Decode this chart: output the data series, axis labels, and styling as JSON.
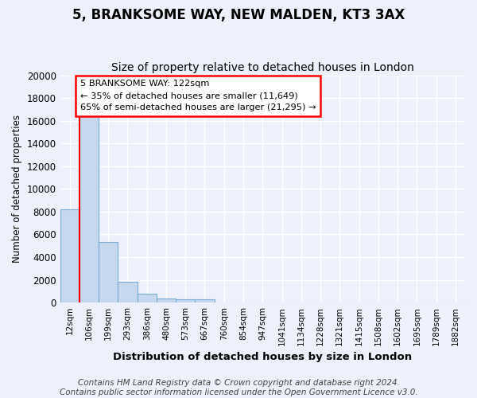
{
  "title1": "5, BRANKSOME WAY, NEW MALDEN, KT3 3AX",
  "title2": "Size of property relative to detached houses in London",
  "xlabel": "Distribution of detached houses by size in London",
  "ylabel": "Number of detached properties",
  "categories": [
    "12sqm",
    "106sqm",
    "199sqm",
    "293sqm",
    "386sqm",
    "480sqm",
    "573sqm",
    "667sqm",
    "760sqm",
    "854sqm",
    "947sqm",
    "1041sqm",
    "1134sqm",
    "1228sqm",
    "1321sqm",
    "1415sqm",
    "1508sqm",
    "1602sqm",
    "1695sqm",
    "1789sqm",
    "1882sqm"
  ],
  "values": [
    8200,
    16600,
    5300,
    1800,
    800,
    350,
    250,
    250,
    0,
    0,
    0,
    0,
    0,
    0,
    0,
    0,
    0,
    0,
    0,
    0,
    0
  ],
  "bar_color": "#c5d8ee",
  "bar_edge_color": "#7badd4",
  "red_line_x": 0.5,
  "annotation_text": "5 BRANKSOME WAY: 122sqm\n← 35% of detached houses are smaller (11,649)\n65% of semi-detached houses are larger (21,295) →",
  "annotation_box_color": "white",
  "annotation_box_edge": "red",
  "ylim": [
    0,
    20000
  ],
  "yticks": [
    0,
    2000,
    4000,
    6000,
    8000,
    10000,
    12000,
    14000,
    16000,
    18000,
    20000
  ],
  "footer1": "Contains HM Land Registry data © Crown copyright and database right 2024.",
  "footer2": "Contains public sector information licensed under the Open Government Licence v3.0.",
  "bg_color": "#eef1fb",
  "plot_bg_color": "#eef1fb",
  "grid_color": "white",
  "title1_fontsize": 12,
  "title2_fontsize": 10,
  "footer_fontsize": 7.5
}
